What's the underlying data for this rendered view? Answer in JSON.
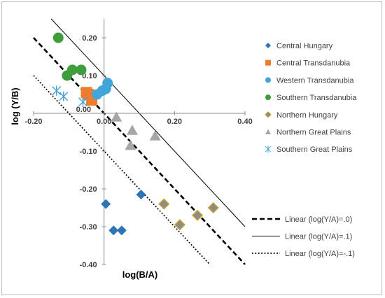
{
  "chart_data": {
    "type": "scatter",
    "title": "",
    "xlabel": "log(B/A)",
    "ylabel": "log (Y/B)",
    "xlim": [
      -0.2,
      0.4
    ],
    "ylim": [
      -0.4,
      0.25
    ],
    "x_ticks": [
      {
        "value": -0.2,
        "label": "-0.20"
      },
      {
        "value": 0.0,
        "label": "0.00"
      },
      {
        "value": 0.2,
        "label": "0.20"
      },
      {
        "value": 0.4,
        "label": "0.40"
      }
    ],
    "y_ticks": [
      {
        "value": 0.2,
        "label": "0.20"
      },
      {
        "value": 0.1,
        "label": "0.10"
      },
      {
        "value": 0.0,
        "label": "0.00"
      },
      {
        "value": -0.1,
        "label": "-0.10"
      },
      {
        "value": -0.2,
        "label": "-0.20"
      },
      {
        "value": -0.3,
        "label": "-0.30"
      },
      {
        "value": -0.4,
        "label": "-0.40"
      }
    ],
    "legend_position": "right",
    "series": [
      {
        "name": "Central Hungary",
        "marker": "diamond",
        "color": "#2E75B6",
        "points": [
          [
            0.005,
            -0.24
          ],
          [
            0.027,
            -0.31
          ],
          [
            0.05,
            -0.31
          ],
          [
            0.105,
            -0.215
          ]
        ]
      },
      {
        "name": "Central Transdanubia",
        "marker": "square",
        "color": "#ED7D31",
        "points": [
          [
            -0.05,
            0.055
          ],
          [
            -0.045,
            0.05
          ],
          [
            -0.035,
            0.035
          ]
        ]
      },
      {
        "name": "Western Transdanubia",
        "marker": "circle",
        "color": "#41A5DA",
        "points": [
          [
            -0.02,
            0.05
          ],
          [
            -0.005,
            0.06
          ],
          [
            0.005,
            0.065
          ],
          [
            0.01,
            0.08
          ]
        ]
      },
      {
        "name": "Southern Transdanubia",
        "marker": "circle",
        "color": "#3F9E3B",
        "points": [
          [
            -0.13,
            0.2
          ],
          [
            -0.105,
            0.1
          ],
          [
            -0.09,
            0.115
          ],
          [
            -0.065,
            0.115
          ]
        ]
      },
      {
        "name": "Northern Hungary",
        "marker": "diamond",
        "color": "#8C8C8C",
        "edge": "#C9A227",
        "points": [
          [
            0.17,
            -0.24
          ],
          [
            0.215,
            -0.295
          ],
          [
            0.265,
            -0.27
          ],
          [
            0.31,
            -0.25
          ]
        ]
      },
      {
        "name": "Northern Great Plains",
        "marker": "triangle",
        "color": "#A6A6A6",
        "points": [
          [
            0.035,
            -0.01
          ],
          [
            0.075,
            -0.085
          ],
          [
            0.08,
            -0.045
          ],
          [
            0.145,
            -0.06
          ]
        ]
      },
      {
        "name": "Southern Great Plains",
        "marker": "star",
        "color": "#41A5DA",
        "points": [
          [
            -0.135,
            0.06
          ],
          [
            -0.115,
            0.045
          ],
          [
            -0.06,
            0.03
          ]
        ]
      }
    ],
    "lines": [
      {
        "name": "Linear (log(Y/A)=.0)",
        "intercept": 0.0,
        "slope": -1,
        "style": "dashed-bold"
      },
      {
        "name": "Linear (log(Y/A)=.1)",
        "intercept": 0.1,
        "slope": -1,
        "style": "solid"
      },
      {
        "name": "Linear (log(Y/A)=-.1)",
        "intercept": -0.1,
        "slope": -1,
        "style": "dotted"
      }
    ]
  }
}
